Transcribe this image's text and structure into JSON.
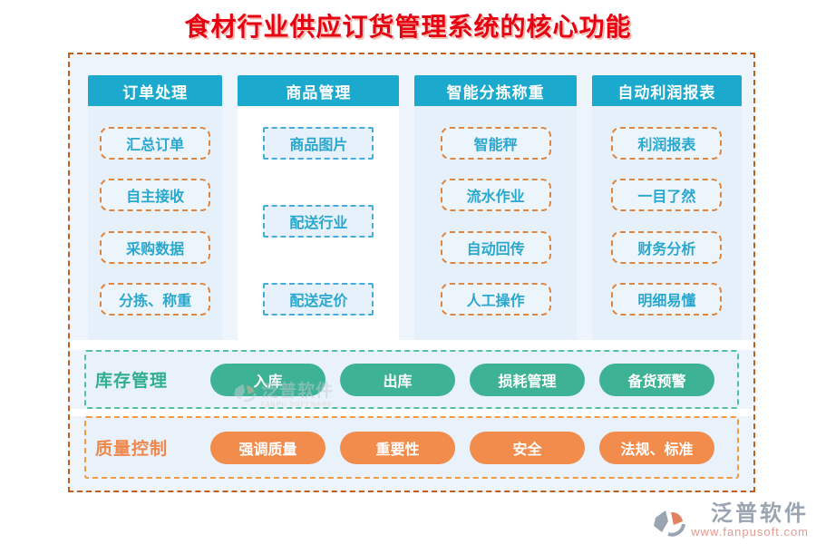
{
  "title": "食材行业供应订货管理系统的核心功能",
  "columns": [
    {
      "header": "订单处理",
      "style": "orange-rounded",
      "items": [
        "汇总订单",
        "自主接收",
        "采购数据",
        "分拣、称重"
      ]
    },
    {
      "header": "商品管理",
      "style": "blue-square",
      "items": [
        "商品图片",
        "配送行业",
        "配送定价"
      ]
    },
    {
      "header": "智能分拣称重",
      "style": "orange-rounded",
      "items": [
        "智能秤",
        "流水作业",
        "自动回传",
        "人工操作"
      ]
    },
    {
      "header": "自动利润报表",
      "style": "orange-rounded",
      "items": [
        "利润报表",
        "一目了然",
        "财务分析",
        "明细易懂"
      ]
    }
  ],
  "rows": [
    {
      "label": "库存管理",
      "theme": "green",
      "buttons": [
        "入库",
        "出库",
        "损耗管理",
        "备货预警"
      ]
    },
    {
      "label": "质量控制",
      "theme": "orange",
      "buttons": [
        "强调质量",
        "重要性",
        "安全",
        "法规、标准"
      ]
    }
  ],
  "watermark": {
    "name": "泛普软件",
    "subtext": "FANPU SOFTWARE"
  },
  "logo": {
    "name": "泛普软件",
    "url": "www.fanpusoft.com"
  },
  "colors": {
    "title_red": "#e60012",
    "teal": "#1ba9ce",
    "item_text": "#29a7cd",
    "item_border_orange": "#de8540",
    "item_border_blue": "#45acdb",
    "board_bg": "#edf4fc",
    "board_border": "#c05f1c",
    "col_bg": "#e6f0fa",
    "col2_bg": "#ffffff",
    "row_bg": "#e9f2fb",
    "green": "#3db295",
    "green_label": "#2fae92",
    "green_border": "#52c0a2",
    "orange": "#f18c4d",
    "orange_label": "#f0884c",
    "orange_border": "#f59b3f",
    "logo_gray": "#9ba5b1",
    "logo_url": "#e59a90"
  }
}
